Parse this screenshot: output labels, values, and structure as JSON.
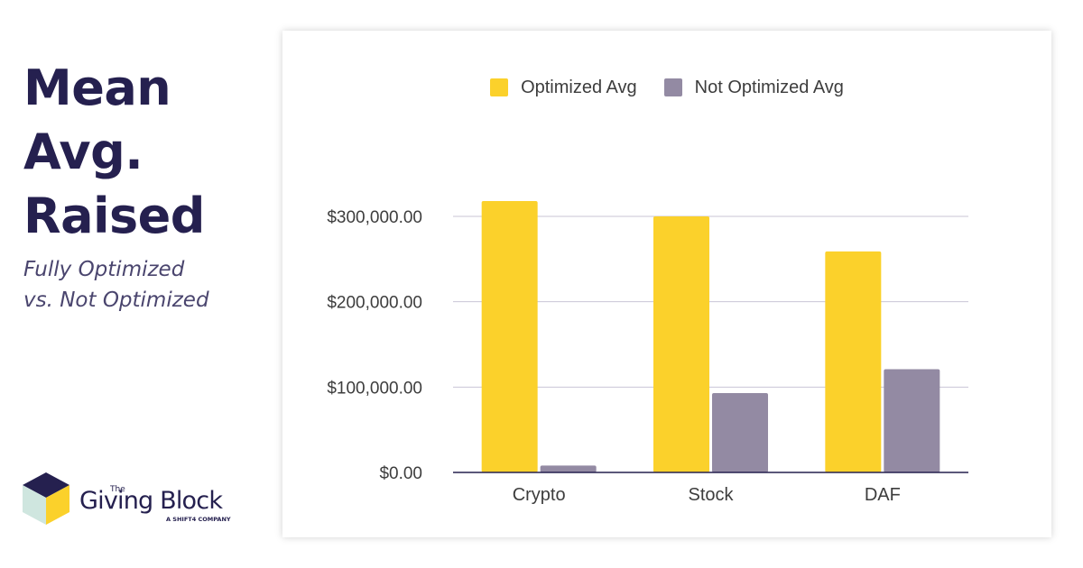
{
  "headline": {
    "lines": [
      "Mean",
      "Avg.",
      "Raised"
    ],
    "sub_lines": [
      "Fully Optimized",
      "vs. Not Optimized"
    ]
  },
  "logo": {
    "the": "The",
    "name": "Giving Block",
    "tagline": "A SHIFT4 COMPANY"
  },
  "colors": {
    "optimized": "#fbd12b",
    "not_optimized": "#938aa3",
    "headline": "#25204f",
    "gridline": "#c9c5d6"
  },
  "chart_data": {
    "type": "bar",
    "categories": [
      "Crypto",
      "Stock",
      "DAF"
    ],
    "series": [
      {
        "name": "Optimized Avg",
        "values": [
          318000,
          300000,
          259000
        ]
      },
      {
        "name": "Not Optimized Avg",
        "values": [
          8000,
          93000,
          121000
        ]
      }
    ],
    "yticks": [
      0,
      100000,
      200000,
      300000
    ],
    "ytick_labels": [
      "$0.00",
      "$100,000.00",
      "$200,000.00",
      "$300,000.00"
    ],
    "ylim": [
      0,
      300000
    ],
    "legend_position": "top-center",
    "grid": true
  }
}
